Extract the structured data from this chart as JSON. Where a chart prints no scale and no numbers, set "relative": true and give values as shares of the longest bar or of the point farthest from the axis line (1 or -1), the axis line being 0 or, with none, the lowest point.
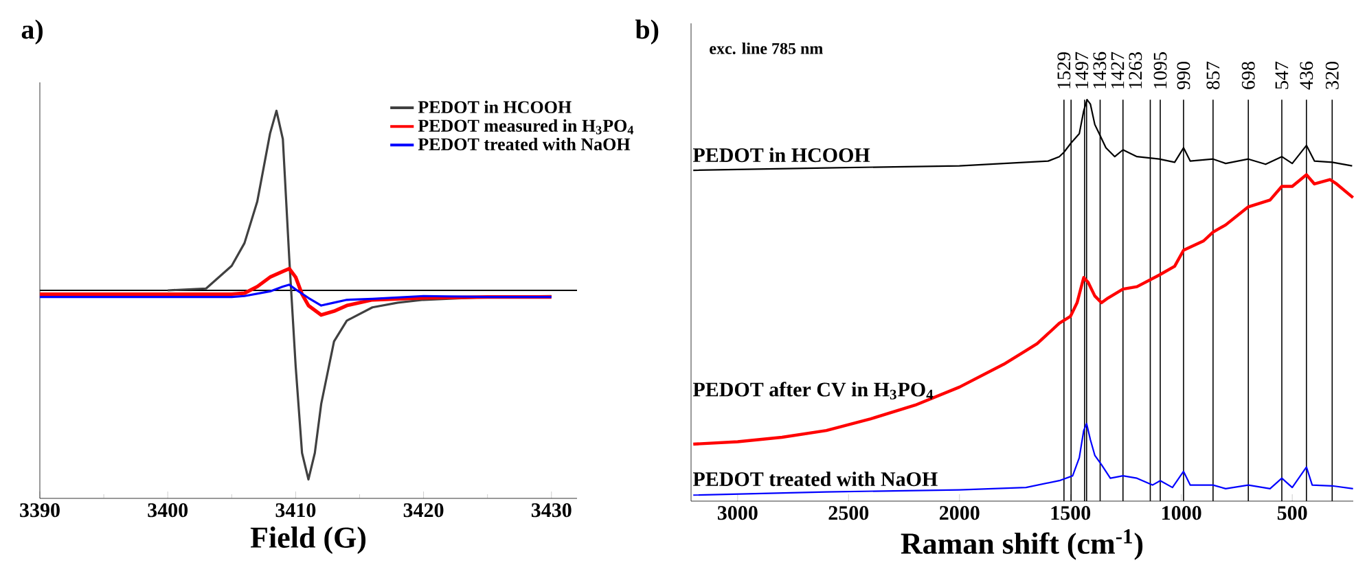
{
  "chart_data": [
    {
      "type": "line",
      "title": "a)",
      "xlabel": "Field (G)",
      "relative": true,
      "xlim": [
        3390,
        3432
      ],
      "xticks": [
        3390,
        {
          "value": 3395,
          "label": null
        },
        3400,
        {
          "value": 3405,
          "label": null
        },
        3410,
        {
          "value": 3415,
          "label": null
        },
        3420,
        {
          "value": 3425,
          "label": null
        },
        3430
      ],
      "tick_labels": "x",
      "legend": "top right",
      "ref_lines": [
        {
          "axis": "y",
          "value": 0
        }
      ],
      "series": [
        {
          "name": "PEDOT in HCOOH",
          "color": "#404040",
          "x": [
            3400,
            3403,
            3405,
            3406,
            3407,
            3408,
            3408.5,
            3409,
            3409.5,
            3410,
            3410.5,
            3411,
            3411.5,
            3412,
            3413,
            3414,
            3416,
            3418,
            3420,
            3425,
            3430
          ],
          "values": [
            0.0,
            0.01,
            0.13,
            0.25,
            0.47,
            0.83,
            0.95,
            0.8,
            0.17,
            -0.4,
            -0.86,
            -1.0,
            -0.86,
            -0.6,
            -0.27,
            -0.16,
            -0.09,
            -0.065,
            -0.05,
            -0.035,
            -0.03
          ]
        },
        {
          "name": "PEDOT measured in H$_{3}$PO$_{4}$",
          "color": "#ff0000",
          "x": [
            3390,
            3395,
            3400,
            3405,
            3406,
            3407,
            3408,
            3409,
            3409.5,
            3410,
            3410.5,
            3411,
            3412,
            3413,
            3414,
            3416,
            3420,
            3425,
            3430
          ],
          "values": [
            -0.02,
            -0.02,
            -0.02,
            -0.02,
            -0.015,
            0.02,
            0.07,
            0.1,
            0.115,
            0.07,
            -0.02,
            -0.08,
            -0.13,
            -0.11,
            -0.08,
            -0.05,
            -0.04,
            -0.035,
            -0.035
          ]
        },
        {
          "name": "PEDOT treated with NaOH",
          "color": "#0000ff",
          "x": [
            3390,
            3395,
            3400,
            3405,
            3406,
            3408,
            3409,
            3409.5,
            3410,
            3411,
            3412,
            3413,
            3414,
            3416,
            3420,
            3425,
            3430
          ],
          "values": [
            -0.035,
            -0.035,
            -0.035,
            -0.035,
            -0.03,
            -0.005,
            0.02,
            0.03,
            0.005,
            -0.04,
            -0.08,
            -0.065,
            -0.05,
            -0.045,
            -0.03,
            -0.035,
            -0.035
          ]
        }
      ]
    },
    {
      "type": "line",
      "title": "b)",
      "xlabel": "Raman shift (cm$^{-1}$)",
      "relative": true,
      "xlim": [
        3210,
        225
      ],
      "xticks": [
        3000,
        2500,
        2000,
        1500,
        1000,
        500
      ],
      "tick_labels": "x",
      "legend": false,
      "annotations": [
        "exc. line 785 nm"
      ],
      "ref_lines": [
        {
          "axis": "x",
          "value": 1529,
          "label": "1529"
        },
        {
          "axis": "x",
          "value": 1497,
          "label": "1497"
        },
        {
          "axis": "x",
          "value": 1436,
          "label": "1436"
        },
        {
          "axis": "x",
          "value": 1427,
          "label": "1427"
        },
        {
          "axis": "x",
          "value": 1366,
          "label": null
        },
        {
          "axis": "x",
          "value": 1263,
          "label": "1263"
        },
        {
          "axis": "x",
          "value": 1140,
          "label": null
        },
        {
          "axis": "x",
          "value": 1095,
          "label": "1095"
        },
        {
          "axis": "x",
          "value": 990,
          "label": "990"
        },
        {
          "axis": "x",
          "value": 857,
          "label": "857"
        },
        {
          "axis": "x",
          "value": 698,
          "label": "698"
        },
        {
          "axis": "x",
          "value": 547,
          "label": "547"
        },
        {
          "axis": "x",
          "value": 436,
          "label": "436"
        },
        {
          "axis": "x",
          "value": 320,
          "label": "320"
        }
      ],
      "series": [
        {
          "name": "PEDOT in HCOOH",
          "color": "#000000",
          "x": [
            3200,
            2600,
            2000,
            1700,
            1600,
            1550,
            1529,
            1497,
            1460,
            1440,
            1425,
            1410,
            1390,
            1370,
            1340,
            1300,
            1263,
            1200,
            1100,
            1030,
            990,
            960,
            857,
            800,
            698,
            620,
            547,
            500,
            436,
            400,
            320,
            230
          ],
          "values": [
            0.824,
            0.83,
            0.835,
            0.844,
            0.847,
            0.858,
            0.869,
            0.892,
            0.915,
            0.972,
            1.0,
            0.989,
            0.938,
            0.915,
            0.88,
            0.858,
            0.875,
            0.858,
            0.852,
            0.844,
            0.88,
            0.847,
            0.852,
            0.841,
            0.852,
            0.839,
            0.858,
            0.841,
            0.886,
            0.847,
            0.844,
            0.835
          ]
        },
        {
          "name": "PEDOT after CV in H$_{3}$PO$_{4}$",
          "color": "#ff0000",
          "x": [
            3200,
            3000,
            2800,
            2600,
            2400,
            2200,
            2000,
            1800,
            1650,
            1550,
            1500,
            1470,
            1440,
            1420,
            1390,
            1360,
            1330,
            1263,
            1200,
            1100,
            1030,
            990,
            900,
            857,
            800,
            698,
            600,
            547,
            500,
            436,
            400,
            330,
            300,
            226
          ],
          "values": [
            0.142,
            0.148,
            0.159,
            0.176,
            0.205,
            0.239,
            0.284,
            0.341,
            0.392,
            0.443,
            0.46,
            0.494,
            0.557,
            0.545,
            0.511,
            0.494,
            0.506,
            0.528,
            0.534,
            0.563,
            0.585,
            0.625,
            0.648,
            0.67,
            0.688,
            0.733,
            0.75,
            0.784,
            0.784,
            0.813,
            0.79,
            0.801,
            0.79,
            0.756
          ]
        },
        {
          "name": "PEDOT treated with NaOH",
          "color": "#0000ff",
          "x": [
            3200,
            2600,
            2000,
            1700,
            1550,
            1490,
            1460,
            1440,
            1427,
            1410,
            1390,
            1360,
            1320,
            1263,
            1200,
            1130,
            1095,
            1040,
            990,
            960,
            857,
            800,
            698,
            600,
            547,
            500,
            436,
            410,
            320,
            226
          ],
          "values": [
            0.015,
            0.023,
            0.028,
            0.034,
            0.051,
            0.063,
            0.108,
            0.176,
            0.193,
            0.153,
            0.114,
            0.091,
            0.057,
            0.063,
            0.057,
            0.04,
            0.051,
            0.034,
            0.074,
            0.04,
            0.04,
            0.031,
            0.04,
            0.031,
            0.057,
            0.034,
            0.085,
            0.04,
            0.038,
            0.031
          ]
        }
      ]
    }
  ]
}
